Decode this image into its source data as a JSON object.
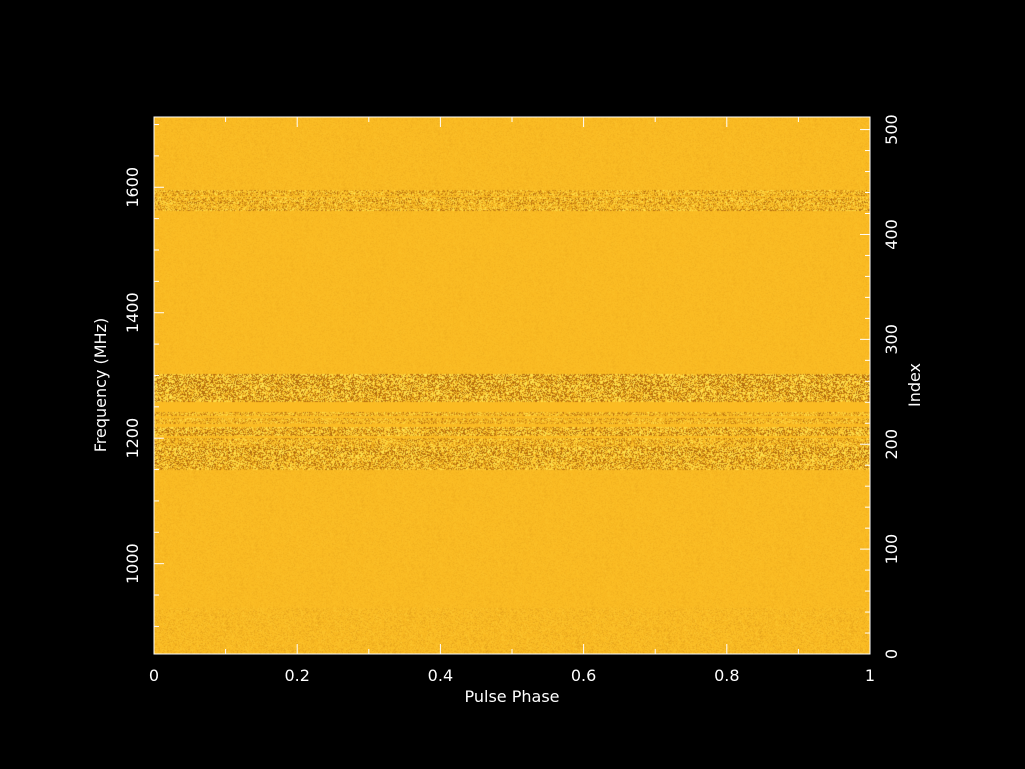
{
  "chart_data": {
    "type": "heatmap",
    "title": "",
    "xlabel": "Pulse Phase",
    "ylabel": "Frequency (MHz)",
    "y2label": "Index",
    "xlim": [
      0,
      1
    ],
    "ylim": [
      856,
      1712
    ],
    "y2lim": [
      0,
      512
    ],
    "x_ticks": [
      0,
      0.2,
      0.4,
      0.6,
      0.8,
      1
    ],
    "x_tick_labels": [
      "0",
      "0.2",
      "0.4",
      "0.6",
      "0.8",
      "1"
    ],
    "y_ticks": [
      1000,
      1200,
      1400,
      1600
    ],
    "y_tick_labels": [
      "1000",
      "1200",
      "1400",
      "1600"
    ],
    "y2_ticks": [
      0,
      100,
      200,
      300,
      400,
      500
    ],
    "y2_tick_labels": [
      "0",
      "100",
      "200",
      "300",
      "400",
      "500"
    ],
    "grid": false,
    "colors": {
      "background": "#000000",
      "frame": "#ffffff",
      "base": "#fbbb22",
      "bright": "#ffe14a",
      "dark": "#b8700e"
    },
    "noisy_bands_mhz": [
      {
        "low": 1562,
        "high": 1566,
        "level": 0.5
      },
      {
        "low": 1566,
        "high": 1574,
        "level": 0.3
      },
      {
        "low": 1574,
        "high": 1584,
        "level": 0.4
      },
      {
        "low": 1586,
        "high": 1596,
        "level": 0.35
      },
      {
        "low": 1150,
        "high": 1158,
        "level": 0.5
      },
      {
        "low": 1158,
        "high": 1172,
        "level": 0.55
      },
      {
        "low": 1172,
        "high": 1186,
        "level": 0.7
      },
      {
        "low": 1186,
        "high": 1200,
        "level": 0.4
      },
      {
        "low": 1204,
        "high": 1218,
        "level": 0.6
      },
      {
        "low": 1222,
        "high": 1232,
        "level": 0.3
      },
      {
        "low": 1236,
        "high": 1242,
        "level": 0.35
      },
      {
        "low": 1258,
        "high": 1272,
        "level": 0.7
      },
      {
        "low": 1272,
        "high": 1284,
        "level": 0.8
      },
      {
        "low": 1284,
        "high": 1302,
        "level": 0.85
      }
    ],
    "subtle_bands_mhz": [
      {
        "low": 856,
        "high": 930,
        "level": 0.06
      },
      {
        "low": 930,
        "high": 1150,
        "level": 0.03
      },
      {
        "low": 1302,
        "high": 1562,
        "level": 0.025
      },
      {
        "low": 1596,
        "high": 1712,
        "level": 0.03
      }
    ]
  }
}
